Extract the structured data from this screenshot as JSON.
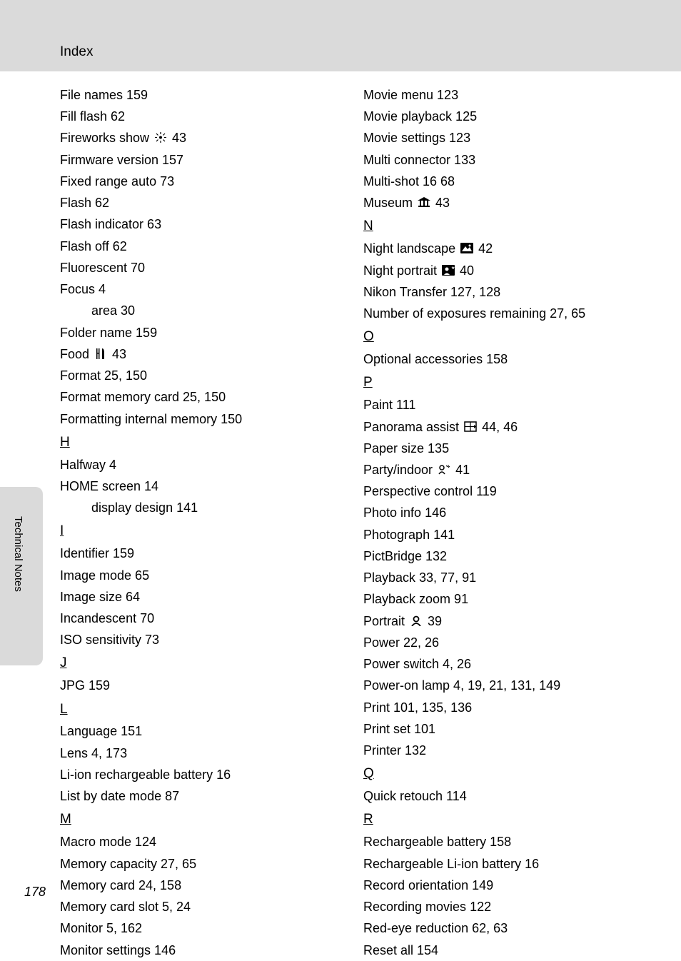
{
  "page": {
    "title": "Index",
    "side_tab": "Technical Notes",
    "page_number": "178",
    "background_color": "#ffffff",
    "band_color": "#dadada",
    "text_color": "#000000",
    "font_size": 18
  },
  "icons": {
    "fireworks": "fireworks-icon",
    "food": "food-icon",
    "museum": "museum-icon",
    "night_landscape": "night-landscape-icon",
    "night_portrait": "night-portrait-icon",
    "panorama": "panorama-icon",
    "party": "party-icon",
    "portrait": "portrait-icon"
  },
  "left": [
    {
      "t": "entry",
      "text": "File names 159"
    },
    {
      "t": "entry",
      "text": "Fill flash 62"
    },
    {
      "t": "entry_icon",
      "pre": "Fireworks show ",
      "icon": "fireworks",
      "post": " 43"
    },
    {
      "t": "entry",
      "text": "Firmware version 157"
    },
    {
      "t": "entry",
      "text": "Fixed range auto 73"
    },
    {
      "t": "entry",
      "text": "Flash 62"
    },
    {
      "t": "entry",
      "text": "Flash indicator 63"
    },
    {
      "t": "entry",
      "text": "Flash off 62"
    },
    {
      "t": "entry",
      "text": "Fluorescent 70"
    },
    {
      "t": "entry",
      "text": "Focus 4"
    },
    {
      "t": "sub",
      "text": "area 30"
    },
    {
      "t": "entry",
      "text": "Folder name 159"
    },
    {
      "t": "entry_icon",
      "pre": "Food ",
      "icon": "food",
      "post": " 43"
    },
    {
      "t": "entry",
      "text": "Format 25, 150"
    },
    {
      "t": "entry",
      "text": "Format memory card 25, 150"
    },
    {
      "t": "entry",
      "text": "Formatting internal memory 150"
    },
    {
      "t": "letter",
      "text": "H"
    },
    {
      "t": "entry",
      "text": "Halfway 4"
    },
    {
      "t": "entry",
      "text": "HOME screen 14"
    },
    {
      "t": "sub",
      "text": "display design 141"
    },
    {
      "t": "letter",
      "text": "I"
    },
    {
      "t": "entry",
      "text": "Identifier 159"
    },
    {
      "t": "entry",
      "text": "Image mode 65"
    },
    {
      "t": "entry",
      "text": "Image size 64"
    },
    {
      "t": "entry",
      "text": "Incandescent 70"
    },
    {
      "t": "entry",
      "text": "ISO sensitivity 73"
    },
    {
      "t": "letter",
      "text": "J"
    },
    {
      "t": "entry",
      "text": "JPG 159"
    },
    {
      "t": "letter",
      "text": "L"
    },
    {
      "t": "entry",
      "text": "Language 151"
    },
    {
      "t": "entry",
      "text": "Lens 4, 173"
    },
    {
      "t": "entry",
      "text": "Li-ion rechargeable battery 16"
    },
    {
      "t": "entry",
      "text": "List by date mode 87"
    },
    {
      "t": "letter",
      "text": "M"
    },
    {
      "t": "entry",
      "text": "Macro mode 124"
    },
    {
      "t": "entry",
      "text": "Memory capacity 27, 65"
    },
    {
      "t": "entry",
      "text": "Memory card 24, 158"
    },
    {
      "t": "entry",
      "text": "Memory card slot 5, 24"
    },
    {
      "t": "entry",
      "text": "Monitor 5, 162"
    },
    {
      "t": "entry",
      "text": "Monitor settings 146"
    }
  ],
  "right": [
    {
      "t": "entry",
      "text": "Movie menu 123"
    },
    {
      "t": "entry",
      "text": "Movie playback 125"
    },
    {
      "t": "entry",
      "text": "Movie settings 123"
    },
    {
      "t": "entry",
      "text": "Multi connector 133"
    },
    {
      "t": "entry",
      "text": "Multi-shot 16 68"
    },
    {
      "t": "entry_icon",
      "pre": "Museum ",
      "icon": "museum",
      "post": " 43"
    },
    {
      "t": "letter",
      "text": "N"
    },
    {
      "t": "entry_icon",
      "pre": "Night landscape ",
      "icon": "night_landscape",
      "post": " 42"
    },
    {
      "t": "entry_icon",
      "pre": "Night portrait ",
      "icon": "night_portrait",
      "post": " 40"
    },
    {
      "t": "entry",
      "text": "Nikon Transfer 127, 128"
    },
    {
      "t": "entry",
      "text": "Number of exposures remaining 27, 65"
    },
    {
      "t": "letter",
      "text": "O"
    },
    {
      "t": "entry",
      "text": "Optional accessories 158"
    },
    {
      "t": "letter",
      "text": "P"
    },
    {
      "t": "entry",
      "text": "Paint 111"
    },
    {
      "t": "entry_icon",
      "pre": "Panorama assist ",
      "icon": "panorama",
      "post": " 44, 46"
    },
    {
      "t": "entry",
      "text": "Paper size 135"
    },
    {
      "t": "entry_icon",
      "pre": "Party/indoor ",
      "icon": "party",
      "post": " 41"
    },
    {
      "t": "entry",
      "text": "Perspective control 119"
    },
    {
      "t": "entry",
      "text": "Photo info 146"
    },
    {
      "t": "entry",
      "text": "Photograph 141"
    },
    {
      "t": "entry",
      "text": "PictBridge 132"
    },
    {
      "t": "entry",
      "text": "Playback 33, 77, 91"
    },
    {
      "t": "entry",
      "text": "Playback zoom 91"
    },
    {
      "t": "entry_icon",
      "pre": "Portrait ",
      "icon": "portrait",
      "post": " 39"
    },
    {
      "t": "entry",
      "text": "Power 22, 26"
    },
    {
      "t": "entry",
      "text": "Power switch 4, 26"
    },
    {
      "t": "entry",
      "text": "Power-on lamp 4, 19, 21, 131, 149"
    },
    {
      "t": "entry",
      "text": "Print 101, 135, 136"
    },
    {
      "t": "entry",
      "text": "Print set 101"
    },
    {
      "t": "entry",
      "text": "Printer 132"
    },
    {
      "t": "letter",
      "text": "Q"
    },
    {
      "t": "entry",
      "text": "Quick retouch 114"
    },
    {
      "t": "letter",
      "text": "R"
    },
    {
      "t": "entry",
      "text": "Rechargeable battery 158"
    },
    {
      "t": "entry",
      "text": "Rechargeable Li-ion battery 16"
    },
    {
      "t": "entry",
      "text": "Record orientation 149"
    },
    {
      "t": "entry",
      "text": "Recording movies 122"
    },
    {
      "t": "entry",
      "text": "Red-eye reduction 62, 63"
    },
    {
      "t": "entry",
      "text": "Reset all 154"
    }
  ]
}
